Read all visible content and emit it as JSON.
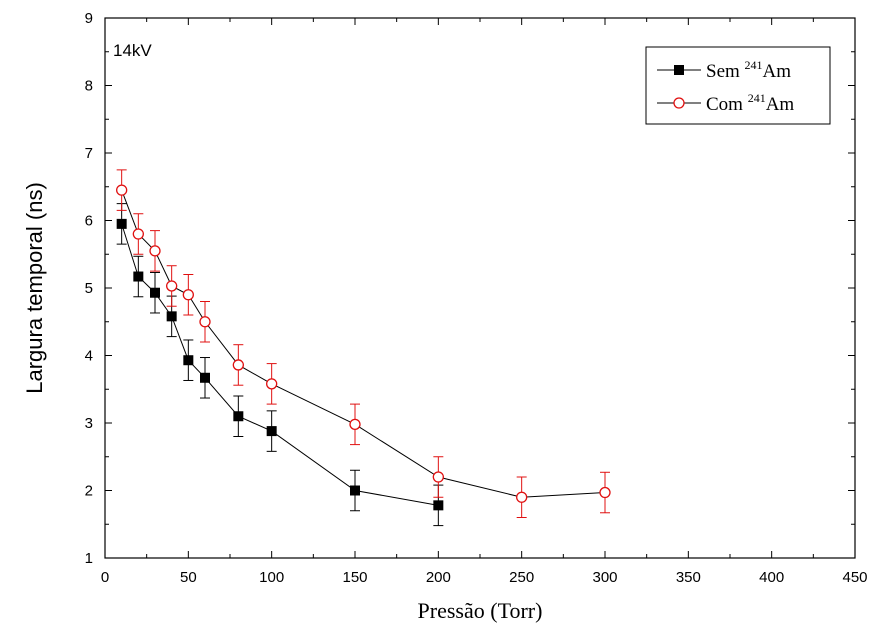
{
  "chart_data": {
    "type": "scatter",
    "xlabel": "Pressão (Torr)",
    "ylabel": "Largura temporal (ns)",
    "annotation": "14kV",
    "xlim": [
      0,
      450
    ],
    "ylim": [
      1,
      9
    ],
    "xticks": [
      0,
      50,
      100,
      150,
      200,
      250,
      300,
      350,
      400,
      450
    ],
    "yticks": [
      1,
      2,
      3,
      4,
      5,
      6,
      7,
      8,
      9
    ],
    "grid": false,
    "legend_position": "top-right",
    "series": [
      {
        "name_prefix": "Sem ",
        "name_isotope": "241",
        "name_suffix": "Am",
        "marker": "filled-square",
        "color": "#000000",
        "errorbar_color": "#000000",
        "x": [
          10,
          20,
          30,
          40,
          50,
          60,
          80,
          100,
          150,
          200
        ],
        "y": [
          5.95,
          5.17,
          4.93,
          4.58,
          3.93,
          3.67,
          3.1,
          2.88,
          2.0,
          1.78
        ],
        "yerr": [
          0.3,
          0.3,
          0.3,
          0.3,
          0.3,
          0.3,
          0.3,
          0.3,
          0.3,
          0.3
        ]
      },
      {
        "name_prefix": "Com ",
        "name_isotope": "241",
        "name_suffix": "Am",
        "marker": "open-circle",
        "color": "#000000",
        "marker_color": "#e01010",
        "errorbar_color": "#e01010",
        "x": [
          10,
          20,
          30,
          40,
          50,
          60,
          80,
          100,
          150,
          200,
          250,
          300
        ],
        "y": [
          6.45,
          5.8,
          5.55,
          5.03,
          4.9,
          4.5,
          3.86,
          3.58,
          2.98,
          2.2,
          1.9,
          1.97
        ],
        "yerr": [
          0.3,
          0.3,
          0.3,
          0.3,
          0.3,
          0.3,
          0.3,
          0.3,
          0.3,
          0.3,
          0.3,
          0.3
        ]
      }
    ]
  }
}
